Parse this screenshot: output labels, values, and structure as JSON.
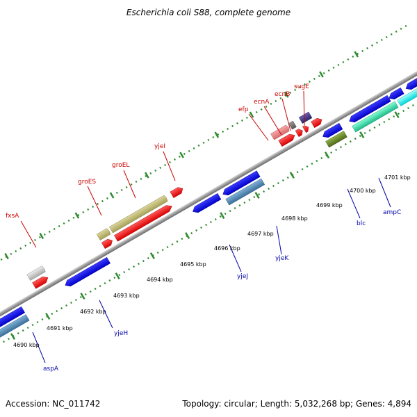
{
  "title": "Escherichia coli S88, complete genome",
  "footer": {
    "accession": "Accession: NC_011742",
    "summary": "Topology: circular; Length: 5,032,268 bp; Genes: 4,894"
  },
  "ticks": [
    "4690 kbp",
    "4691 kbp",
    "4692 kbp",
    "4693 kbp",
    "4694 kbp",
    "4695 kbp",
    "4696 kbp",
    "4697 kbp",
    "4698 kbp",
    "4699 kbp",
    "4700 kbp",
    "4701 kbp"
  ],
  "labels_top": [
    "fxsA",
    "groES",
    "groEL",
    "yjeI",
    "efp",
    "ecnA",
    "ecnB",
    "sugE"
  ],
  "labels_bottom": [
    "aspA",
    "yjeH",
    "yjeJ",
    "yjeK",
    "blc",
    "ampC"
  ],
  "colors": {
    "forward_red": "#ff0000",
    "reverse_blue": "#0000ee",
    "steel_blue": "#4682b4",
    "khaki": "#bdb76b",
    "light_gray": "#cccccc",
    "pink": "#f08080",
    "dark_gray": "#777777",
    "dark_slate": "#483d8b",
    "olive": "#6b8e23",
    "aquamarine": "#3cd9a0",
    "cyan": "#00ffff",
    "backbone": "#8a8a8a",
    "tick_green": "#2e8b2e",
    "label_red": "#cc0000",
    "label_blue": "#0000aa"
  }
}
